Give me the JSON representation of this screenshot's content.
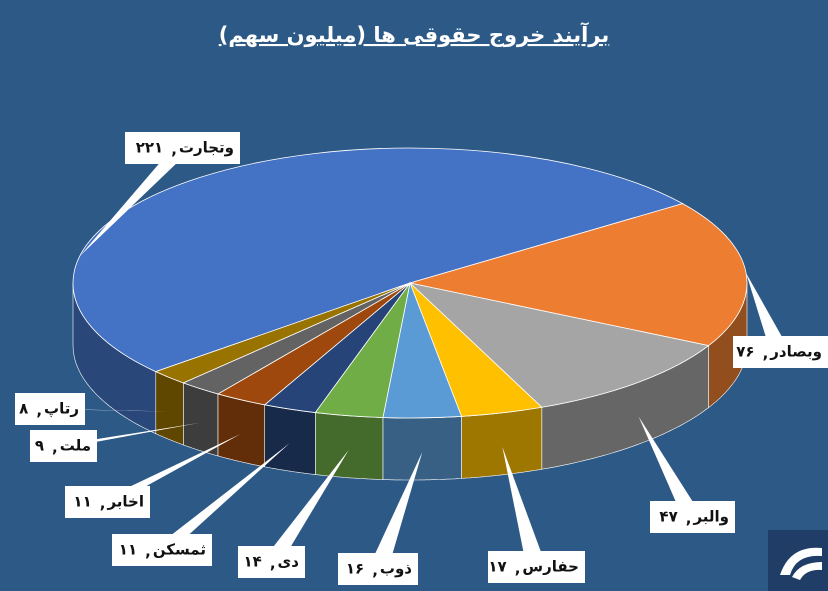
{
  "chart_data": {
    "type": "pie3d",
    "title": "برآیند خروج حقوقی ها (میلیون سهم)",
    "categories": [
      "وتجارت",
      "وبصادر",
      "والبر",
      "حفارس",
      "ذوب",
      "دی",
      "ثمسکن",
      "اخابر",
      "ملت",
      "رتاپ"
    ],
    "values": [
      221,
      76,
      47,
      17,
      16,
      14,
      11,
      11,
      9,
      8
    ],
    "value_labels": [
      "۲۲۱",
      "۷۶",
      "۴۷",
      "۱۷",
      "۱۶",
      "۱۴",
      "۱۱",
      "۱۱",
      "۹",
      "۸"
    ],
    "label_separator": ",",
    "colors": [
      "#4472c4",
      "#ed7d31",
      "#a5a5a5",
      "#ffc000",
      "#5b9bd5",
      "#70ad47",
      "#264478",
      "#9e480e",
      "#636363",
      "#997300"
    ]
  }
}
